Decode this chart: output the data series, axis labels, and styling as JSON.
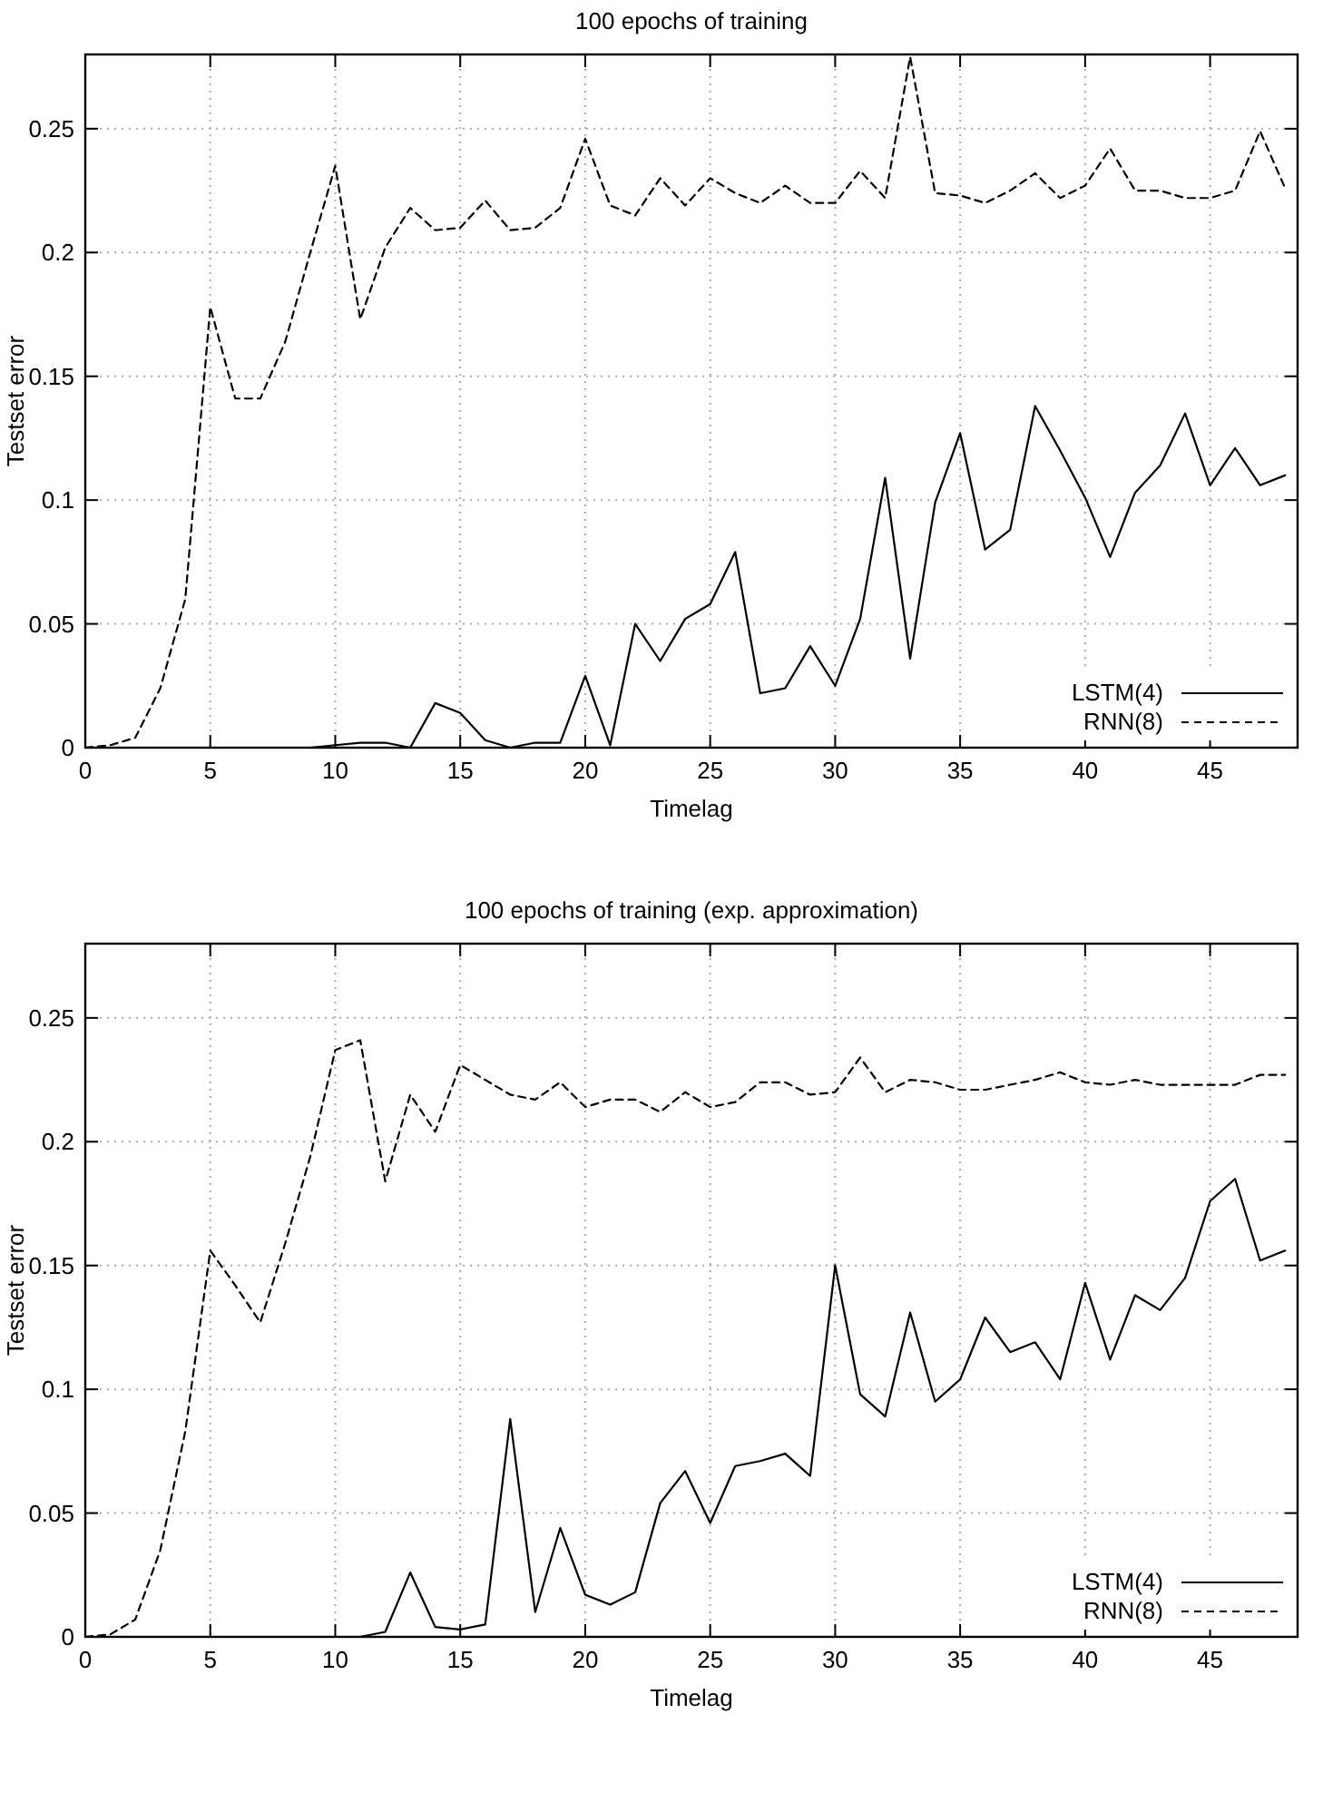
{
  "chart_data": [
    {
      "type": "line",
      "title": "100 epochs of training",
      "xlabel": "Timelag",
      "ylabel": "Testset error",
      "x": [
        0,
        1,
        2,
        3,
        4,
        5,
        6,
        7,
        8,
        9,
        10,
        11,
        12,
        13,
        14,
        15,
        16,
        17,
        18,
        19,
        20,
        21,
        22,
        23,
        24,
        25,
        26,
        27,
        28,
        29,
        30,
        31,
        32,
        33,
        34,
        35,
        36,
        37,
        38,
        39,
        40,
        41,
        42,
        43,
        44,
        45,
        46,
        47,
        48
      ],
      "xlim": [
        0,
        48.5
      ],
      "xticks": [
        0,
        5,
        10,
        15,
        20,
        25,
        30,
        35,
        40,
        45
      ],
      "ylim": [
        0,
        0.28
      ],
      "yticks": [
        0,
        0.05,
        0.1,
        0.15,
        0.2,
        0.25
      ],
      "grid": true,
      "legend": "bottom right",
      "series": [
        {
          "name": "LSTM(4)",
          "color": "#000000",
          "line_style": "solid",
          "values": [
            0,
            0,
            0,
            0,
            0,
            0,
            0,
            0,
            0,
            0,
            0.001,
            0.002,
            0.002,
            0,
            0.018,
            0.014,
            0.003,
            0,
            0.002,
            0.002,
            0.029,
            0.001,
            0.05,
            0.035,
            0.052,
            0.058,
            0.079,
            0.022,
            0.024,
            0.041,
            0.025,
            0.052,
            0.109,
            0.036,
            0.099,
            0.127,
            0.08,
            0.088,
            0.138,
            0.12,
            0.101,
            0.077,
            0.103,
            0.114,
            0.135,
            0.106,
            0.121,
            0.106,
            0.11
          ]
        },
        {
          "name": "RNN(8)",
          "color": "#000000",
          "line_style": "dashed",
          "values": [
            0,
            0.001,
            0.004,
            0.024,
            0.06,
            0.178,
            0.141,
            0.141,
            0.164,
            0.2,
            0.235,
            0.173,
            0.202,
            0.218,
            0.209,
            0.21,
            0.221,
            0.209,
            0.21,
            0.218,
            0.246,
            0.219,
            0.215,
            0.23,
            0.219,
            0.23,
            0.224,
            0.22,
            0.227,
            0.22,
            0.22,
            0.233,
            0.222,
            0.279,
            0.224,
            0.223,
            0.22,
            0.225,
            0.232,
            0.222,
            0.227,
            0.242,
            0.225,
            0.225,
            0.222,
            0.222,
            0.225,
            0.249,
            0.226
          ]
        }
      ]
    },
    {
      "type": "line",
      "title": "100 epochs of training (exp. approximation)",
      "xlabel": "Timelag",
      "ylabel": "Testset error",
      "x": [
        0,
        1,
        2,
        3,
        4,
        5,
        6,
        7,
        8,
        9,
        10,
        11,
        12,
        13,
        14,
        15,
        16,
        17,
        18,
        19,
        20,
        21,
        22,
        23,
        24,
        25,
        26,
        27,
        28,
        29,
        30,
        31,
        32,
        33,
        34,
        35,
        36,
        37,
        38,
        39,
        40,
        41,
        42,
        43,
        44,
        45,
        46,
        47,
        48
      ],
      "xlim": [
        0,
        48.5
      ],
      "xticks": [
        0,
        5,
        10,
        15,
        20,
        25,
        30,
        35,
        40,
        45
      ],
      "ylim": [
        0,
        0.28
      ],
      "yticks": [
        0,
        0.05,
        0.1,
        0.15,
        0.2,
        0.25
      ],
      "grid": true,
      "legend": "bottom right",
      "series": [
        {
          "name": "LSTM(4)",
          "color": "#000000",
          "line_style": "solid",
          "values": [
            0,
            0,
            0,
            0,
            0,
            0,
            0,
            0,
            0,
            0,
            0,
            0,
            0.002,
            0.026,
            0.004,
            0.003,
            0.005,
            0.088,
            0.01,
            0.044,
            0.017,
            0.013,
            0.018,
            0.054,
            0.067,
            0.046,
            0.069,
            0.071,
            0.074,
            0.065,
            0.15,
            0.098,
            0.089,
            0.131,
            0.095,
            0.104,
            0.129,
            0.115,
            0.119,
            0.104,
            0.143,
            0.112,
            0.138,
            0.132,
            0.145,
            0.176,
            0.185,
            0.152,
            0.156
          ]
        },
        {
          "name": "RNN(8)",
          "color": "#000000",
          "line_style": "dashed",
          "values": [
            0,
            0.001,
            0.007,
            0.035,
            0.083,
            0.156,
            0.142,
            0.127,
            0.159,
            0.194,
            0.237,
            0.241,
            0.184,
            0.219,
            0.204,
            0.231,
            0.225,
            0.219,
            0.217,
            0.224,
            0.214,
            0.217,
            0.217,
            0.212,
            0.22,
            0.214,
            0.216,
            0.224,
            0.224,
            0.219,
            0.22,
            0.234,
            0.22,
            0.225,
            0.224,
            0.221,
            0.221,
            0.223,
            0.225,
            0.228,
            0.224,
            0.223,
            0.225,
            0.223,
            0.223,
            0.223,
            0.223,
            0.227,
            0.227
          ]
        }
      ]
    }
  ]
}
